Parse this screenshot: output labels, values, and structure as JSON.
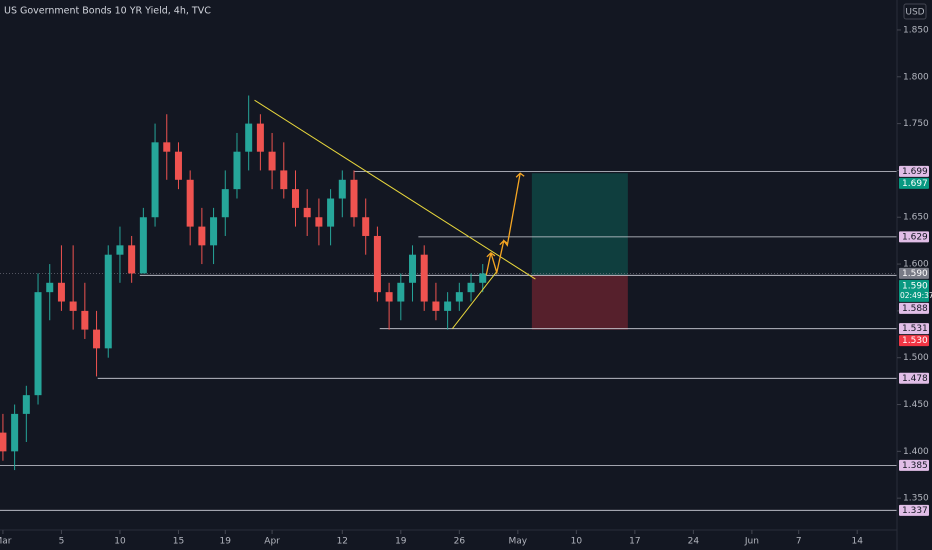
{
  "chart_data": {
    "type": "candlestick",
    "title": "US Government Bonds 10 YR Yield, 4h, TVC",
    "currency": "USD",
    "up_color": "#26a69a",
    "down_color": "#ef5350",
    "xlim": [
      -0.25,
      76.4
    ],
    "ylim": [
      1.316,
      1.882
    ],
    "xticks": [
      {
        "value": 0,
        "label": "Mar"
      },
      5,
      10,
      15,
      19,
      {
        "value": 23,
        "label": "Apr"
      },
      {
        "value": 29,
        "label": "12"
      },
      {
        "value": 34,
        "label": "19"
      },
      {
        "value": 39,
        "label": "26"
      },
      {
        "value": 44,
        "label": "May"
      },
      {
        "value": 49,
        "label": "10"
      },
      {
        "value": 54,
        "label": "17"
      },
      {
        "value": 59,
        "label": "24"
      },
      {
        "value": 64,
        "label": "Jun"
      },
      {
        "value": 68,
        "label": "7"
      },
      {
        "value": 73,
        "label": "14"
      }
    ],
    "yticks": [
      {
        "value": 1.35,
        "label": "1.350"
      },
      {
        "value": 1.4,
        "label": "1.400"
      },
      {
        "value": 1.45,
        "label": "1.450"
      },
      {
        "value": 1.5,
        "label": "1.500"
      },
      {
        "value": 1.55,
        "label": "1.550"
      },
      {
        "value": 1.6,
        "label": "1.600"
      },
      {
        "value": 1.65,
        "label": "1.650"
      },
      {
        "value": 1.7,
        "label": "1.700"
      },
      {
        "value": 1.75,
        "label": "1.750"
      },
      {
        "value": 1.8,
        "label": "1.800"
      },
      {
        "value": 1.85,
        "label": "1.850"
      }
    ],
    "x": [
      0,
      1,
      2,
      3,
      4,
      5,
      6,
      7,
      8,
      9,
      10,
      11,
      12,
      13,
      14,
      15,
      16,
      17,
      18,
      19,
      20,
      21,
      22,
      23,
      24,
      25,
      26,
      27,
      28,
      29,
      30,
      31,
      32,
      33,
      34,
      35,
      36,
      37,
      38,
      39,
      40,
      41
    ],
    "open": [
      1.42,
      1.4,
      1.44,
      1.46,
      1.57,
      1.58,
      1.56,
      1.55,
      1.53,
      1.51,
      1.61,
      1.62,
      1.59,
      1.65,
      1.73,
      1.72,
      1.69,
      1.64,
      1.62,
      1.65,
      1.68,
      1.72,
      1.75,
      1.72,
      1.7,
      1.68,
      1.66,
      1.65,
      1.64,
      1.67,
      1.69,
      1.65,
      1.63,
      1.57,
      1.56,
      1.58,
      1.61,
      1.56,
      1.55,
      1.56,
      1.57,
      1.58
    ],
    "high": [
      1.44,
      1.45,
      1.47,
      1.59,
      1.6,
      1.62,
      1.62,
      1.58,
      1.55,
      1.62,
      1.64,
      1.63,
      1.66,
      1.75,
      1.76,
      1.73,
      1.7,
      1.66,
      1.66,
      1.7,
      1.74,
      1.78,
      1.76,
      1.74,
      1.73,
      1.7,
      1.68,
      1.67,
      1.68,
      1.7,
      1.7,
      1.67,
      1.64,
      1.58,
      1.59,
      1.62,
      1.62,
      1.58,
      1.57,
      1.58,
      1.59,
      1.6
    ],
    "low": [
      1.39,
      1.38,
      1.41,
      1.45,
      1.54,
      1.55,
      1.53,
      1.52,
      1.48,
      1.5,
      1.58,
      1.58,
      1.59,
      1.64,
      1.69,
      1.68,
      1.62,
      1.6,
      1.6,
      1.63,
      1.67,
      1.7,
      1.7,
      1.68,
      1.67,
      1.64,
      1.63,
      1.62,
      1.62,
      1.65,
      1.64,
      1.61,
      1.56,
      1.53,
      1.54,
      1.56,
      1.55,
      1.54,
      1.53,
      1.55,
      1.56,
      1.57
    ],
    "close": [
      1.4,
      1.44,
      1.46,
      1.57,
      1.58,
      1.56,
      1.55,
      1.53,
      1.51,
      1.61,
      1.62,
      1.59,
      1.65,
      1.73,
      1.72,
      1.69,
      1.64,
      1.62,
      1.65,
      1.68,
      1.72,
      1.75,
      1.72,
      1.7,
      1.68,
      1.66,
      1.65,
      1.64,
      1.67,
      1.69,
      1.65,
      1.63,
      1.57,
      1.56,
      1.58,
      1.61,
      1.56,
      1.55,
      1.56,
      1.57,
      1.58,
      1.59
    ],
    "levels": [
      {
        "value": 1.699,
        "label": "1.699",
        "from": 30
      },
      {
        "value": 1.629,
        "label": "1.629",
        "from": 35.5
      },
      {
        "value": 1.588,
        "label": "1.588",
        "from": 11.7
      },
      {
        "value": 1.531,
        "label": "1.531",
        "from": 32.2
      },
      {
        "value": 1.478,
        "label": "1.478",
        "from": 8.1
      },
      {
        "value": 1.385,
        "label": "1.385",
        "from": -0.25
      },
      {
        "value": 1.337,
        "label": "1.337",
        "from": -0.25
      }
    ],
    "level_color": "#e1bee7",
    "last_price": {
      "value": 1.59,
      "label": "1.590",
      "countdown": "02:49:37",
      "color": "#089981"
    },
    "prev_close": {
      "value": 1.59,
      "label": "1.590",
      "color": "#787b86"
    },
    "position": {
      "from": 45.2,
      "to": 53.4,
      "entry": 1.588,
      "target": 1.697,
      "stop": 1.53,
      "target_label": {
        "value": 1.697,
        "label": "1.697"
      },
      "stop_label": {
        "value": 1.53,
        "label": "1.530"
      },
      "target_color": "#089981",
      "stop_color": "#f23645"
    },
    "trendline": {
      "color": "#e7d63c",
      "points": [
        [
          21.5,
          1.775
        ],
        [
          45.5,
          1.584
        ]
      ]
    },
    "support": {
      "color": "#e7d63c",
      "points": [
        [
          38.4,
          1.531
        ],
        [
          42.2,
          1.592
        ]
      ]
    },
    "projection": {
      "color": "#f5a623",
      "points": [
        [
          41.3,
          1.588
        ],
        [
          41.7,
          1.612
        ],
        [
          42.2,
          1.591
        ],
        [
          42.8,
          1.625
        ],
        [
          43.1,
          1.62
        ],
        [
          44.2,
          1.697
        ]
      ]
    }
  }
}
